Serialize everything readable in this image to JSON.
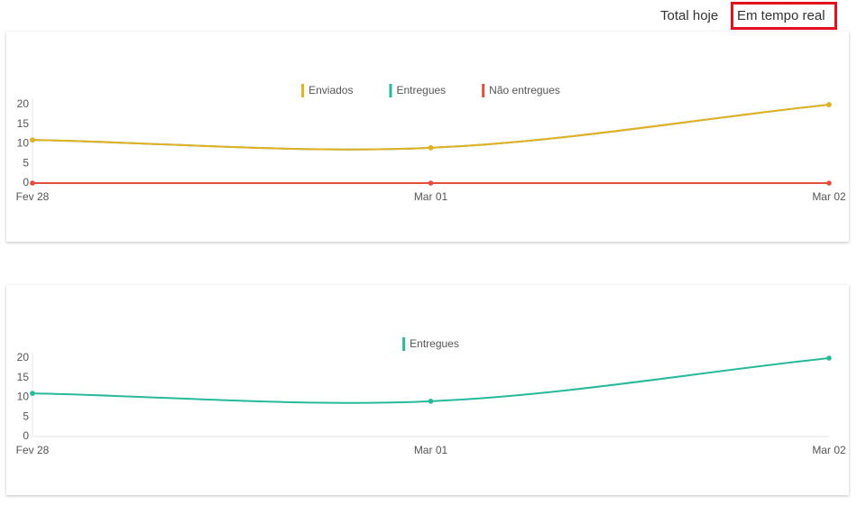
{
  "tabs": [
    "Total hoje",
    "Em tempo real"
  ],
  "chart_data": [
    {
      "type": "line",
      "categories": [
        "Fev 28",
        "Mar 01",
        "Mar 02"
      ],
      "series": [
        {
          "name": "Enviados",
          "color": "#e6b022",
          "values": [
            11,
            9,
            20
          ]
        },
        {
          "name": "Entregues",
          "color": "#26b99a",
          "values": [
            11,
            9,
            20
          ]
        },
        {
          "name": "Não entregues",
          "color": "#e74c3c",
          "values": [
            0,
            0,
            0
          ]
        }
      ],
      "ylim": [
        0,
        20
      ],
      "yticks": [
        0,
        5,
        10,
        15,
        20
      ]
    },
    {
      "type": "line",
      "categories": [
        "Fev 28",
        "Mar 01",
        "Mar 02"
      ],
      "series": [
        {
          "name": "Entregues",
          "color": "#26b99a",
          "values": [
            11,
            9,
            20
          ]
        }
      ],
      "ylim": [
        0,
        20
      ],
      "yticks": [
        0,
        5,
        10,
        15,
        20
      ]
    }
  ]
}
